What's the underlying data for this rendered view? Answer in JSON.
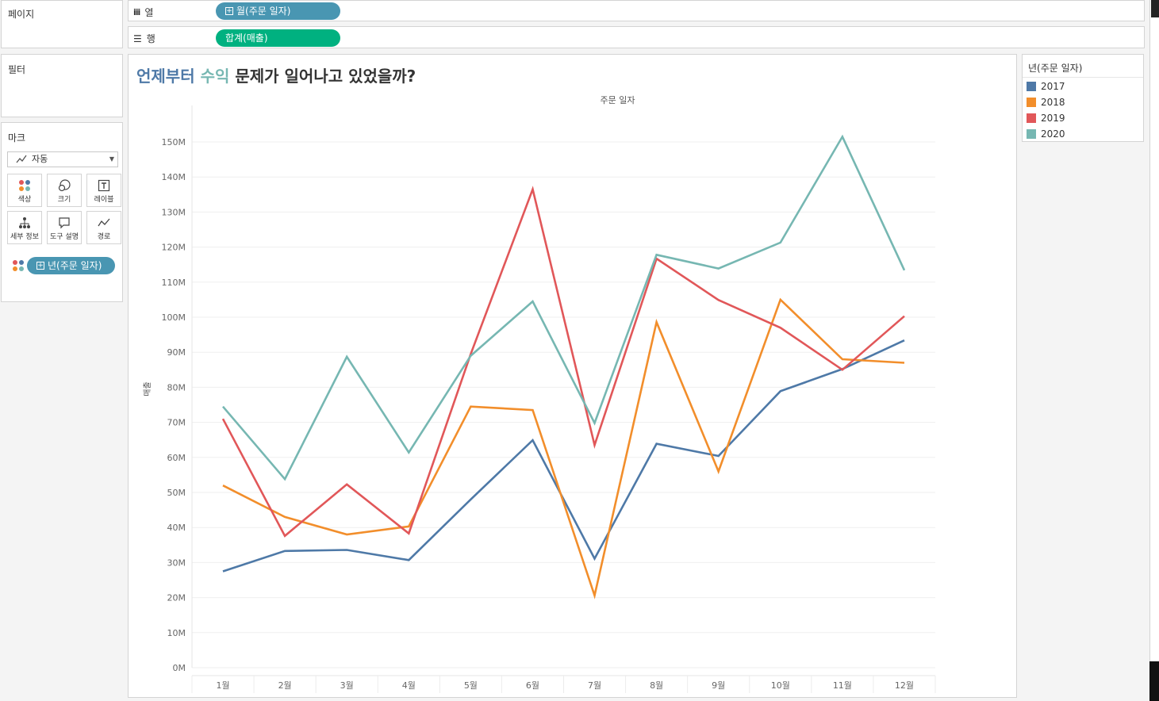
{
  "left_panels": {
    "pages_title": "페이지",
    "filters_title": "필터",
    "marks_title": "마크",
    "mark_type": "자동",
    "mark_buttons": [
      {
        "label": "색상",
        "icon": "color-icon"
      },
      {
        "label": "크기",
        "icon": "size-icon"
      },
      {
        "label": "레이블",
        "icon": "label-icon"
      },
      {
        "label": "세부 정보",
        "icon": "detail-icon"
      },
      {
        "label": "도구 설명",
        "icon": "tooltip-icon"
      },
      {
        "label": "경로",
        "icon": "path-icon"
      }
    ],
    "color_pill": "년(주문 일자)"
  },
  "shelves": {
    "columns_label": "열",
    "columns_pill": "월(주문 일자)",
    "rows_label": "행",
    "rows_pill": "합계(매출)"
  },
  "worksheet": {
    "title_part1": "언제부터",
    "title_part2": "수익",
    "title_part3": "문제가 일어나고 있었을까?"
  },
  "legend": {
    "title": "년(주문 일자)",
    "items": [
      {
        "label": "2017",
        "color": "#4e79a7"
      },
      {
        "label": "2018",
        "color": "#f28e2b"
      },
      {
        "label": "2019",
        "color": "#e15759"
      },
      {
        "label": "2020",
        "color": "#76b7b2"
      }
    ]
  },
  "colors": {
    "columns_pill": "#4996b2",
    "rows_pill": "#00b180",
    "title_blue": "#4e79a7",
    "title_teal": "#76b7b2"
  },
  "chart_data": {
    "type": "line",
    "title": "",
    "xlabel": "주문 일자",
    "ylabel": "매출",
    "categories": [
      "1월",
      "2월",
      "3월",
      "4월",
      "5월",
      "6월",
      "7월",
      "8월",
      "9월",
      "10월",
      "11월",
      "12월"
    ],
    "ylim": [
      0,
      155
    ],
    "yticks": [
      "0M",
      "10M",
      "20M",
      "30M",
      "40M",
      "50M",
      "60M",
      "70M",
      "80M",
      "90M",
      "100M",
      "110M",
      "120M",
      "130M",
      "140M",
      "150M"
    ],
    "ytick_values": [
      0,
      10,
      20,
      30,
      40,
      50,
      60,
      70,
      80,
      90,
      100,
      110,
      120,
      130,
      140,
      150
    ],
    "grid": true,
    "legend_position": "right",
    "series": [
      {
        "name": "2017",
        "color": "#4e79a7",
        "values": [
          27.5,
          33.3,
          33.6,
          30.7,
          48.0,
          64.9,
          31.1,
          63.9,
          60.4,
          78.9,
          85.2,
          93.4
        ]
      },
      {
        "name": "2018",
        "color": "#f28e2b",
        "values": [
          52.0,
          43.0,
          38.0,
          40.3,
          74.5,
          73.5,
          20.6,
          98.6,
          56.0,
          105.0,
          88.0,
          87.0
        ]
      },
      {
        "name": "2019",
        "color": "#e15759",
        "values": [
          71.0,
          37.6,
          52.3,
          38.3,
          89.5,
          136.5,
          63.5,
          116.7,
          104.9,
          97.0,
          85.0,
          100.3
        ]
      },
      {
        "name": "2020",
        "color": "#76b7b2",
        "values": [
          74.5,
          53.8,
          88.7,
          61.4,
          89.0,
          104.5,
          69.8,
          117.8,
          113.9,
          121.3,
          151.5,
          113.4
        ]
      }
    ]
  }
}
